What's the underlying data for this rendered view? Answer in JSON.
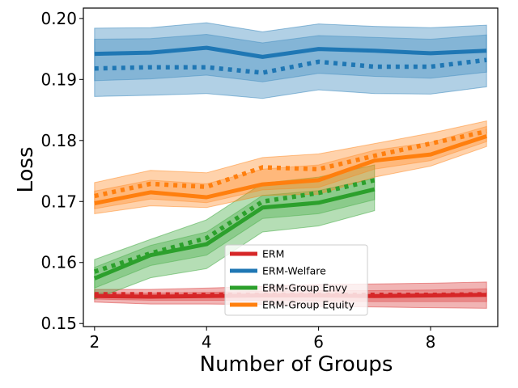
{
  "chart_data": {
    "type": "line",
    "title": "",
    "xlabel": "Number of Groups",
    "ylabel": "Loss",
    "xlim": [
      1.8,
      9.2
    ],
    "ylim": [
      0.1495,
      0.2017
    ],
    "xticks": [
      2,
      4,
      6,
      8
    ],
    "xtick_labels": [
      "2",
      "4",
      "6",
      "8"
    ],
    "yticks": [
      0.15,
      0.16,
      0.17,
      0.18,
      0.19,
      0.2
    ],
    "ytick_labels": [
      "0.15",
      "0.16",
      "0.17",
      "0.18",
      "0.19",
      "0.20"
    ],
    "grid": false,
    "legend_position": "lower-center",
    "series": [
      {
        "name": "ERM",
        "color": "#d62728",
        "x": [
          2,
          3,
          4,
          5,
          6,
          7,
          8,
          9
        ],
        "values": [
          0.1545,
          0.1544,
          0.1545,
          0.1546,
          0.1546,
          0.1545,
          0.1546,
          0.1547
        ],
        "band_low": [
          0.1535,
          0.1532,
          0.1532,
          0.1531,
          0.1528,
          0.1527,
          0.1526,
          0.1525
        ],
        "band_high": [
          0.1556,
          0.1556,
          0.1558,
          0.1561,
          0.1564,
          0.1565,
          0.1566,
          0.1568
        ],
        "band_inner_low": [
          0.154,
          0.1538,
          0.1538,
          0.1538,
          0.1537,
          0.1536,
          0.1536,
          0.1536
        ],
        "band_inner_high": [
          0.155,
          0.155,
          0.1551,
          0.1553,
          0.1554,
          0.1554,
          0.1555,
          0.1557
        ],
        "dotted_values": [
          0.1548,
          0.1548,
          0.1547,
          0.1547,
          0.1547,
          0.1547,
          0.1547,
          0.1548
        ]
      },
      {
        "name": "ERM-Welfare",
        "color": "#1f77b4",
        "x": [
          2,
          3,
          4,
          5,
          6,
          7,
          8,
          9
        ],
        "values": [
          0.1942,
          0.1944,
          0.1952,
          0.1937,
          0.195,
          0.1947,
          0.1943,
          0.1947
        ],
        "band_low": [
          0.1872,
          0.1874,
          0.1877,
          0.1869,
          0.1883,
          0.1877,
          0.1876,
          0.1888
        ],
        "band_high": [
          0.1984,
          0.1985,
          0.1993,
          0.1978,
          0.1991,
          0.1987,
          0.1985,
          0.1989
        ],
        "band_inner_low": [
          0.1898,
          0.1901,
          0.1907,
          0.1896,
          0.191,
          0.1905,
          0.1902,
          0.1912
        ],
        "band_inner_high": [
          0.1966,
          0.1967,
          0.1974,
          0.196,
          0.1972,
          0.1969,
          0.1966,
          0.1973
        ],
        "dotted_values": [
          0.1918,
          0.192,
          0.192,
          0.1911,
          0.1929,
          0.1921,
          0.1921,
          0.1932
        ]
      },
      {
        "name": "ERM-Group Envy",
        "color": "#2ca02c",
        "x": [
          2,
          3,
          4,
          5,
          6,
          7
        ],
        "values": [
          0.1574,
          0.1612,
          0.163,
          0.169,
          0.1698,
          0.172
        ],
        "band_low": [
          0.154,
          0.1575,
          0.159,
          0.165,
          0.166,
          0.1685
        ],
        "band_high": [
          0.1605,
          0.1638,
          0.167,
          0.173,
          0.174,
          0.176
        ],
        "band_inner_low": [
          0.1558,
          0.1595,
          0.1612,
          0.1672,
          0.168,
          0.1703
        ],
        "band_inner_high": [
          0.1592,
          0.1628,
          0.165,
          0.171,
          0.1718,
          0.1738
        ],
        "dotted_values": [
          0.1585,
          0.1615,
          0.164,
          0.17,
          0.1714,
          0.1735
        ]
      },
      {
        "name": "ERM-Group Equity",
        "color": "#ff7f0e",
        "x": [
          2,
          3,
          4,
          5,
          6,
          7,
          8,
          9
        ],
        "values": [
          0.1697,
          0.1715,
          0.1707,
          0.1728,
          0.1735,
          0.1767,
          0.1777,
          0.1807
        ],
        "band_low": [
          0.168,
          0.1693,
          0.169,
          0.171,
          0.1712,
          0.174,
          0.1758,
          0.179
        ],
        "band_high": [
          0.1731,
          0.1751,
          0.1747,
          0.1772,
          0.1778,
          0.1795,
          0.1812,
          0.1832
        ],
        "band_inner_low": [
          0.1688,
          0.1704,
          0.1698,
          0.1719,
          0.1723,
          0.1753,
          0.1767,
          0.1798
        ],
        "band_inner_high": [
          0.1717,
          0.1735,
          0.1729,
          0.1753,
          0.176,
          0.1784,
          0.1797,
          0.1823
        ],
        "dotted_values": [
          0.1709,
          0.1729,
          0.1724,
          0.1756,
          0.1753,
          0.1775,
          0.1795,
          0.1815
        ]
      }
    ]
  }
}
